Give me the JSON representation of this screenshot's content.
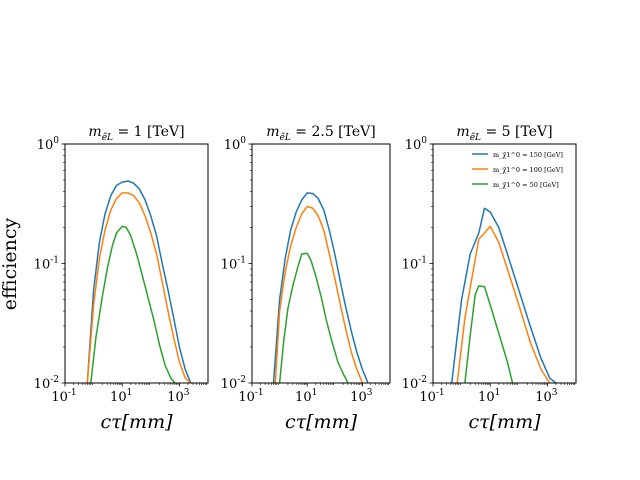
{
  "figure": {
    "ylabel": "efficiency"
  },
  "chart_data": [
    {
      "type": "line",
      "title": "m_{ẽL} = 1 [TeV]",
      "title_main": "m",
      "title_sub": "ẽL",
      "title_rest": " = 1 [TeV]",
      "xlabel": "cτ[mm]",
      "ylabel": "efficiency",
      "xscale": "log",
      "yscale": "log",
      "xlim": [
        0.1,
        10000
      ],
      "ylim": [
        0.01,
        1
      ],
      "x_ticks": [
        "10^-1",
        "10^1",
        "10^3"
      ],
      "y_ticks": [
        "10^-2",
        "10^-1",
        "10^0"
      ],
      "series": [
        {
          "name": "m_χ̃1^0 = 150 [GeV]",
          "color": "#1f77b4",
          "x": [
            0.6,
            1,
            1.6,
            2.5,
            4,
            6.3,
            10,
            16,
            25,
            40,
            63,
            100,
            160,
            250,
            400,
            630,
            1000,
            1600,
            2500
          ],
          "y": [
            0.01,
            0.06,
            0.15,
            0.26,
            0.37,
            0.45,
            0.48,
            0.49,
            0.47,
            0.42,
            0.34,
            0.25,
            0.17,
            0.1,
            0.06,
            0.035,
            0.02,
            0.013,
            0.01
          ]
        },
        {
          "name": "m_χ̃1^0 = 100 [GeV]",
          "color": "#ff7f0e",
          "x": [
            0.6,
            1,
            1.6,
            2.5,
            4,
            6.3,
            10,
            16,
            25,
            40,
            63,
            100,
            160,
            250,
            400,
            630,
            1000,
            1600,
            2500
          ],
          "y": [
            0.01,
            0.045,
            0.11,
            0.19,
            0.28,
            0.35,
            0.39,
            0.39,
            0.37,
            0.32,
            0.25,
            0.18,
            0.12,
            0.07,
            0.04,
            0.024,
            0.015,
            0.011,
            0.01
          ]
        },
        {
          "name": "m_χ̃1^0 = 50 [GeV]",
          "color": "#2ca02c",
          "x": [
            0.8,
            1.2,
            2,
            3,
            4.5,
            6.3,
            10,
            14,
            20,
            32,
            50,
            80,
            130,
            200,
            320,
            500,
            700
          ],
          "y": [
            0.01,
            0.024,
            0.052,
            0.09,
            0.14,
            0.18,
            0.205,
            0.2,
            0.17,
            0.12,
            0.08,
            0.052,
            0.033,
            0.021,
            0.014,
            0.011,
            0.01
          ]
        }
      ]
    },
    {
      "type": "line",
      "title": "m_{ẽL} = 2.5 [TeV]",
      "title_main": "m",
      "title_sub": "ẽL",
      "title_rest": " = 2.5 [TeV]",
      "xlabel": "cτ[mm]",
      "ylabel": "",
      "xscale": "log",
      "yscale": "log",
      "xlim": [
        0.1,
        10000
      ],
      "ylim": [
        0.01,
        1
      ],
      "x_ticks": [
        "10^-1",
        "10^1",
        "10^3"
      ],
      "y_ticks": [
        "10^-2",
        "10^-1",
        "10^0"
      ],
      "series": [
        {
          "name": "m_χ̃1^0 = 150 [GeV]",
          "color": "#1f77b4",
          "x": [
            0.6,
            1,
            1.6,
            2.5,
            4,
            6.3,
            10,
            16,
            25,
            40,
            63,
            100,
            160,
            250,
            400,
            630,
            1000,
            1600
          ],
          "y": [
            0.01,
            0.05,
            0.11,
            0.19,
            0.27,
            0.34,
            0.39,
            0.385,
            0.35,
            0.28,
            0.19,
            0.12,
            0.07,
            0.043,
            0.027,
            0.018,
            0.013,
            0.01
          ]
        },
        {
          "name": "m_χ̃1^0 = 100 [GeV]",
          "color": "#ff7f0e",
          "x": [
            0.7,
            1,
            1.6,
            2.5,
            4,
            6.3,
            10,
            16,
            25,
            40,
            63,
            100,
            160,
            250,
            400,
            630,
            1000
          ],
          "y": [
            0.01,
            0.04,
            0.085,
            0.14,
            0.2,
            0.26,
            0.3,
            0.29,
            0.25,
            0.19,
            0.12,
            0.075,
            0.045,
            0.028,
            0.018,
            0.013,
            0.01
          ]
        },
        {
          "name": "m_χ̃1^0 = 50 [GeV]",
          "color": "#2ca02c",
          "x": [
            1,
            1.4,
            2,
            3,
            4.5,
            6.3,
            10,
            14,
            20,
            32,
            50,
            80,
            130,
            200,
            300
          ],
          "y": [
            0.01,
            0.022,
            0.042,
            0.065,
            0.092,
            0.12,
            0.122,
            0.105,
            0.08,
            0.053,
            0.033,
            0.022,
            0.015,
            0.012,
            0.01
          ]
        }
      ]
    },
    {
      "type": "line",
      "title": "m_{ẽL} = 5 [TeV]",
      "title_main": "m",
      "title_sub": "ẽL",
      "title_rest": " = 5 [TeV]",
      "xlabel": "cτ[mm]",
      "ylabel": "",
      "xscale": "log",
      "yscale": "log",
      "xlim": [
        0.1,
        10000
      ],
      "ylim": [
        0.01,
        1
      ],
      "x_ticks": [
        "10^-1",
        "10^1",
        "10^3"
      ],
      "y_ticks": [
        "10^-2",
        "10^-1",
        "10^0"
      ],
      "legend": "top-right",
      "series": [
        {
          "name": "m_χ̃1^0 = 150 [GeV]",
          "color": "#1f77b4",
          "x": [
            0.45,
            1,
            2,
            4,
            6.3,
            10,
            20,
            40,
            100,
            250,
            600,
            1200,
            2000
          ],
          "y": [
            0.01,
            0.05,
            0.12,
            0.18,
            0.29,
            0.27,
            0.2,
            0.12,
            0.06,
            0.03,
            0.016,
            0.011,
            0.01
          ]
        },
        {
          "name": "m_χ̃1^0 = 100 [GeV]",
          "color": "#ff7f0e",
          "x": [
            0.7,
            1.3,
            2.5,
            4,
            6.3,
            10,
            20,
            40,
            100,
            250,
            600,
            1200
          ],
          "y": [
            0.01,
            0.035,
            0.085,
            0.16,
            0.18,
            0.205,
            0.15,
            0.09,
            0.045,
            0.022,
            0.013,
            0.01
          ]
        },
        {
          "name": "m_χ̃1^0 = 50 [GeV]",
          "color": "#2ca02c",
          "x": [
            1.3,
            2,
            3,
            4,
            6.3,
            10,
            20,
            40,
            60
          ],
          "y": [
            0.01,
            0.025,
            0.055,
            0.065,
            0.064,
            0.045,
            0.026,
            0.015,
            0.01
          ]
        }
      ]
    }
  ]
}
